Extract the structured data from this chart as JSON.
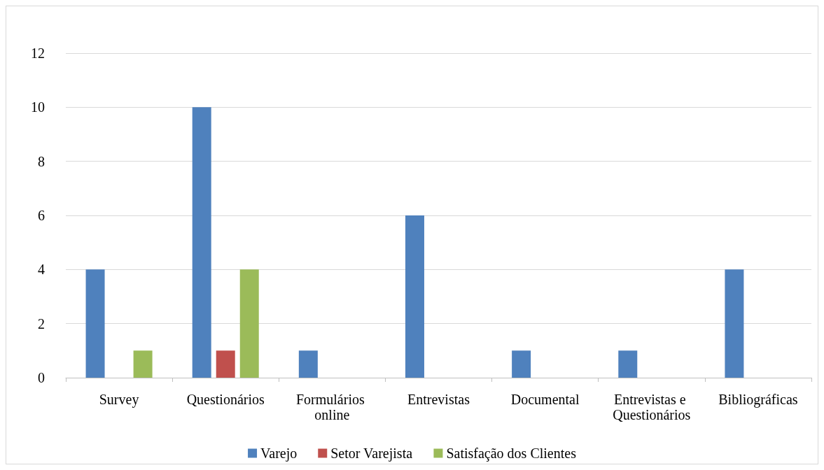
{
  "chart_data": {
    "type": "bar",
    "categories": [
      "Survey",
      "Questionários",
      "Formulários online",
      "Entrevistas",
      "Documental",
      "Entrevistas e Questionários",
      "Bibliográficas"
    ],
    "series": [
      {
        "name": "Varejo",
        "color": "#4f81bd",
        "values": [
          4,
          10,
          1,
          6,
          1,
          1,
          4
        ]
      },
      {
        "name": "Setor Varejista",
        "color": "#c0504d",
        "values": [
          0,
          1,
          0,
          0,
          0,
          0,
          0
        ]
      },
      {
        "name": "Satisfação dos Clientes",
        "color": "#9bbb59",
        "values": [
          1,
          4,
          0,
          0,
          0,
          0,
          0
        ]
      }
    ],
    "ylim": [
      0,
      12
    ],
    "yticks": [
      0,
      2,
      4,
      6,
      8,
      10,
      12
    ],
    "grid": "y",
    "legend": "bottom"
  }
}
